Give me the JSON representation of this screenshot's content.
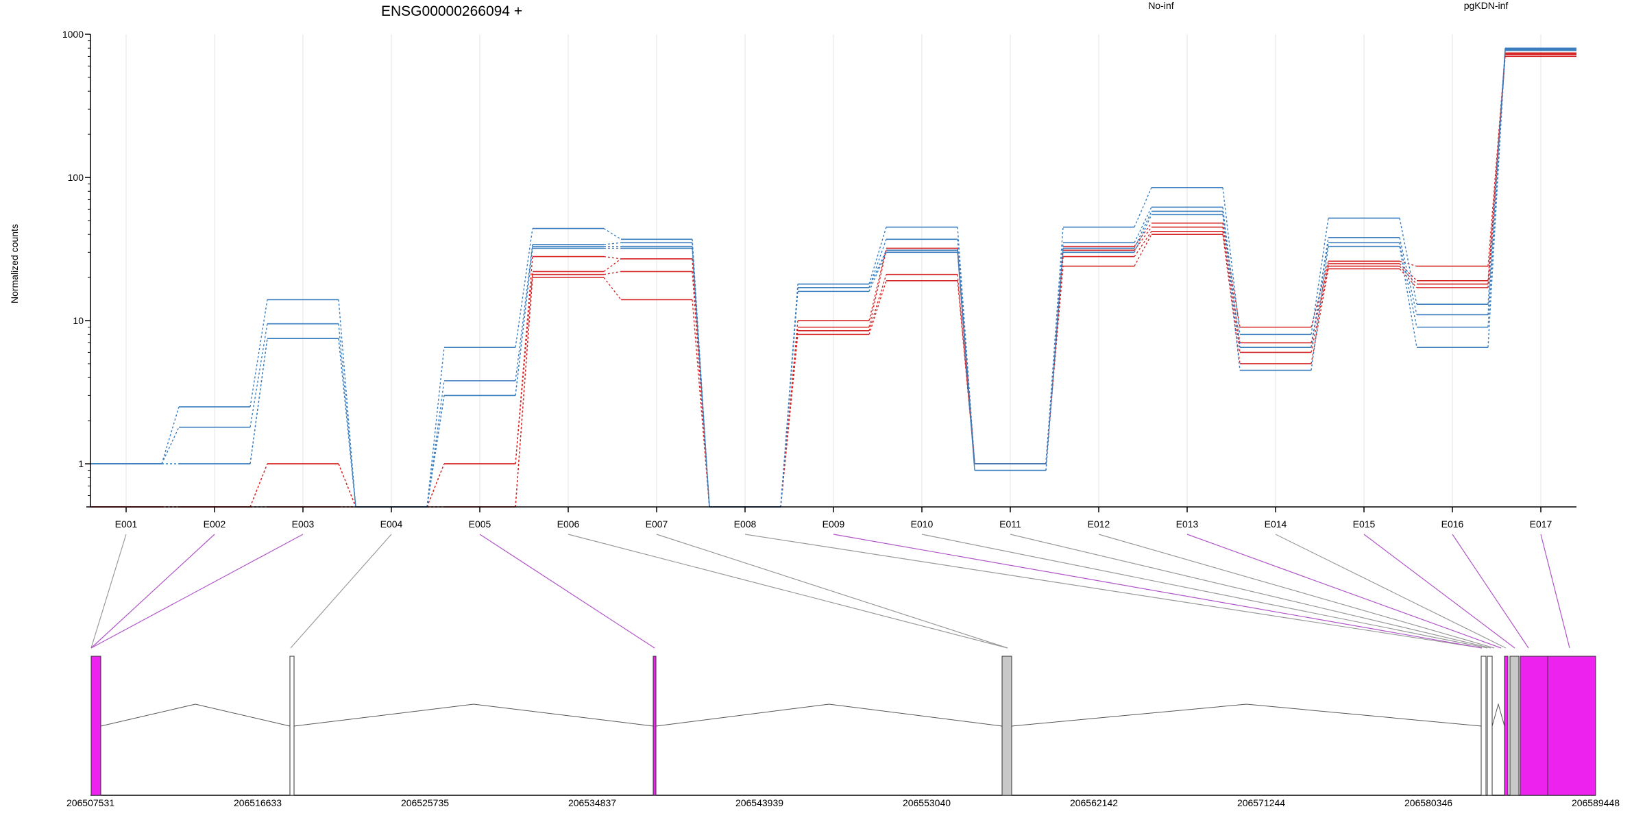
{
  "chart_data": {
    "type": "line",
    "title": "ENSG00000266094 +",
    "ylabel": "Normalized counts",
    "yscale": "log",
    "ylim": [
      0.5,
      1000
    ],
    "y_ticks": [
      "1",
      "10",
      "100",
      "1000"
    ],
    "y_tick_values": [
      1,
      10,
      100,
      1000
    ],
    "categories": [
      "E001",
      "E002",
      "E003",
      "E004",
      "E005",
      "E006",
      "E007",
      "E008",
      "E009",
      "E010",
      "E011",
      "E012",
      "E013",
      "E014",
      "E015",
      "E016",
      "E017"
    ],
    "colors": {
      "No-inf": "#d62728",
      "pgKDN-inf": "#3a7ebf",
      "gene_model_highlight": "#ee22ee",
      "gene_model_gray": "#c8c8c8",
      "connector_gray": "#999999",
      "connector_purple": "#b055c8"
    },
    "legend": [
      {
        "name": "No-inf",
        "color": "#d62728"
      },
      {
        "name": "pgKDN-inf",
        "color": "#3a7ebf"
      }
    ],
    "series": [
      {
        "group": "No-inf",
        "values": [
          0.5,
          0.5,
          0.5,
          0.5,
          0.5,
          20,
          14,
          0.5,
          8,
          19,
          1,
          24,
          40,
          5,
          23,
          17,
          700
        ]
      },
      {
        "group": "No-inf",
        "values": [
          0.5,
          0.5,
          0.5,
          0.5,
          0.5,
          21,
          22,
          0.5,
          8.5,
          21,
          1,
          28,
          42,
          6,
          24,
          18,
          720
        ]
      },
      {
        "group": "No-inf",
        "values": [
          0.5,
          0.5,
          1,
          0.5,
          1,
          22,
          27,
          0.5,
          9,
          31,
          1,
          31,
          45,
          7,
          25,
          19,
          730
        ]
      },
      {
        "group": "No-inf",
        "values": [
          0.5,
          0.5,
          1,
          0.5,
          1,
          28,
          27,
          0.5,
          10,
          32,
          1,
          33,
          48,
          9,
          26,
          24,
          740
        ]
      },
      {
        "group": "pgKDN-inf",
        "values": [
          1,
          1,
          7.5,
          0.5,
          3,
          32,
          32,
          0.5,
          16,
          30,
          0.9,
          30,
          55,
          4.5,
          33,
          6.5,
          770
        ]
      },
      {
        "group": "pgKDN-inf",
        "values": [
          1,
          1,
          7.5,
          0.5,
          3,
          33,
          33,
          0.5,
          17,
          31,
          0.9,
          32,
          58,
          6.5,
          35,
          9,
          780
        ]
      },
      {
        "group": "pgKDN-inf",
        "values": [
          1,
          1.8,
          9.5,
          0.5,
          3.8,
          34,
          35,
          0.5,
          17,
          37,
          1,
          35,
          62,
          6.5,
          38,
          11,
          790
        ]
      },
      {
        "group": "pgKDN-inf",
        "values": [
          1,
          2.5,
          14,
          0.5,
          6.5,
          44,
          37,
          0.5,
          18,
          45,
          1,
          45,
          85,
          8,
          52,
          13,
          800
        ]
      }
    ],
    "genomic_ticks": [
      "206507531",
      "206516633",
      "206525735",
      "206534837",
      "206543939",
      "206553040",
      "206562142",
      "206571244",
      "206580346",
      "206589448"
    ],
    "gene_model_exons": [
      {
        "type": "highlight"
      },
      {
        "type": "white"
      },
      {
        "type": "highlight"
      },
      {
        "type": "gray"
      },
      {
        "type": "white"
      },
      {
        "type": "white"
      },
      {
        "type": "highlight"
      },
      {
        "type": "gray"
      },
      {
        "type": "highlight"
      },
      {
        "type": "highlight"
      }
    ],
    "exon_link_colors": [
      "gray",
      "purple",
      "purple",
      "gray",
      "purple",
      "gray",
      "gray",
      "gray",
      "purple",
      "gray",
      "gray",
      "gray",
      "purple",
      "gray",
      "purple",
      "purple",
      "purple"
    ]
  }
}
